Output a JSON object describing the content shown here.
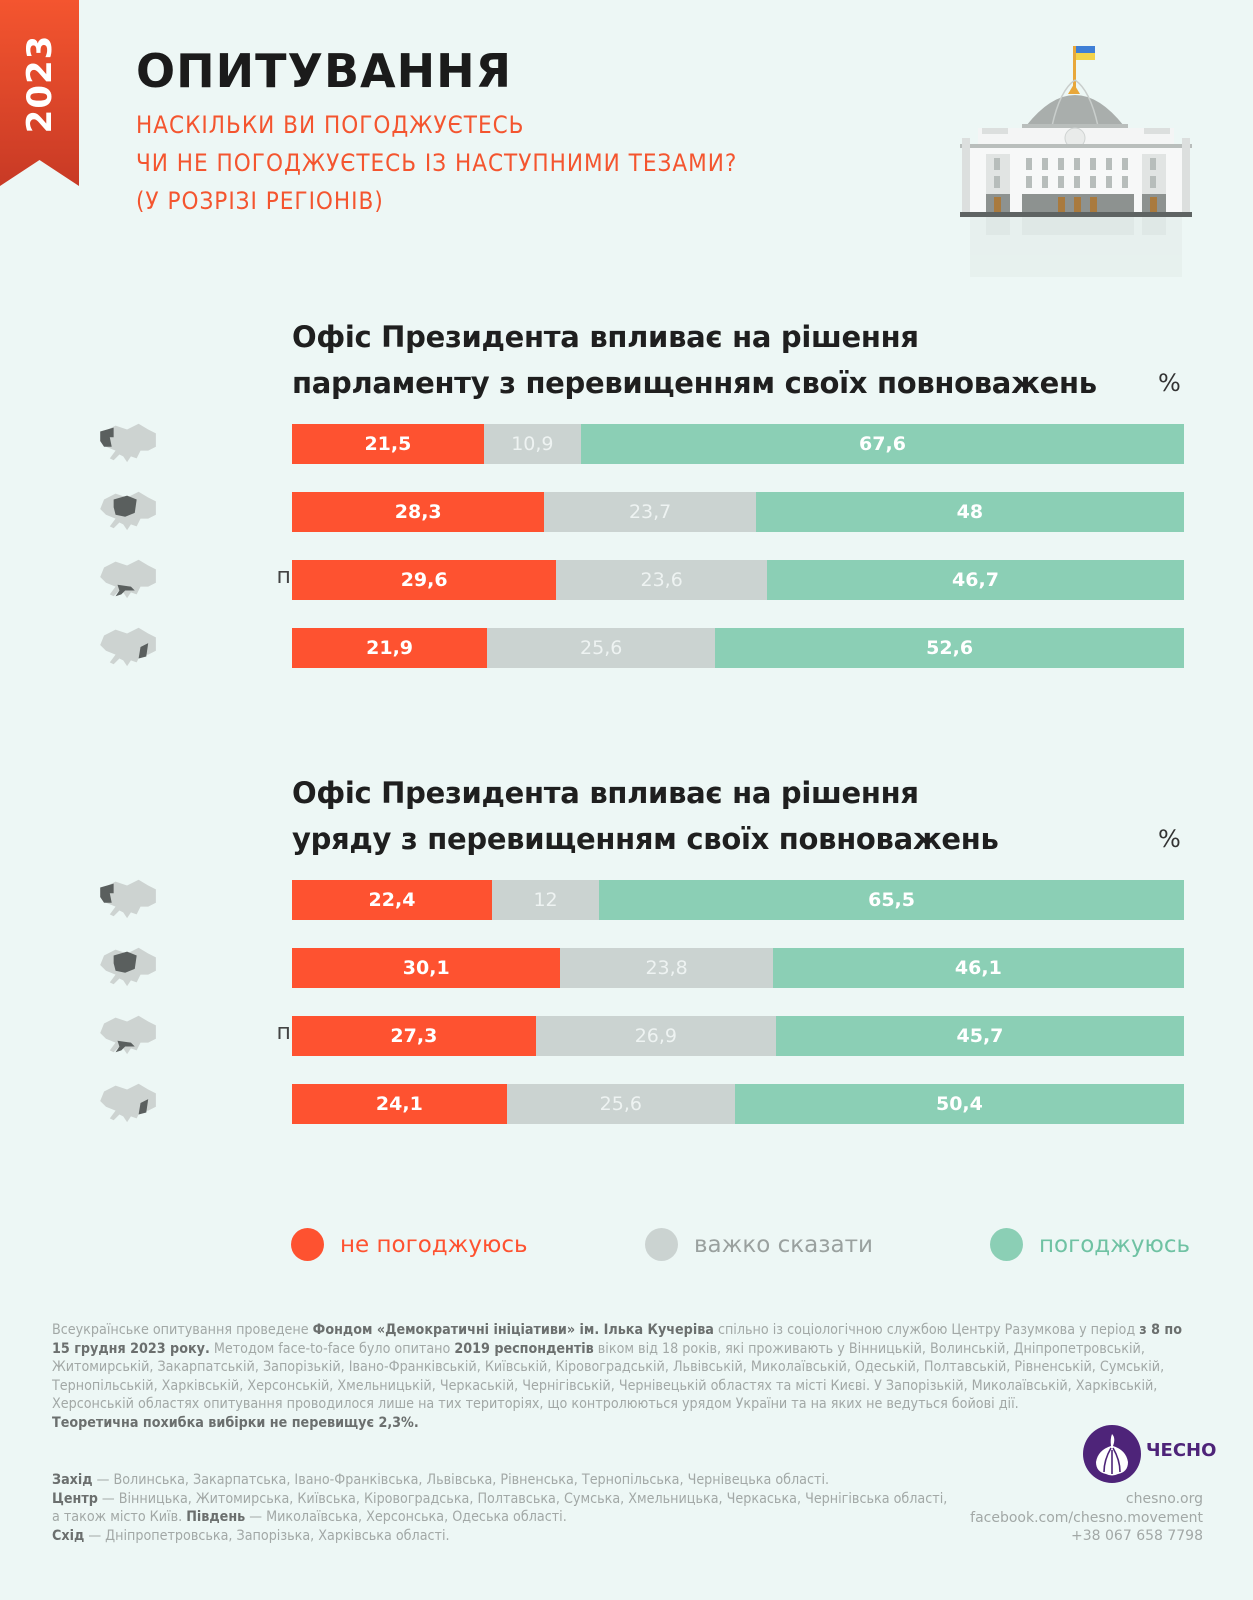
{
  "ribbon": {
    "year": "2023"
  },
  "header": {
    "title": "ОПИТУВАННЯ",
    "subtitle_lines": [
      "НАСКІЛЬКИ ВИ ПОГОДЖУЄТЕСЬ",
      "ЧИ НЕ ПОГОДЖУЄТЕСЬ ІЗ НАСТУПНИМИ ТЕЗАМИ?",
      "(У РОЗРІЗІ РЕГІОНІВ)"
    ]
  },
  "colors": {
    "disagree": "#fe5230",
    "hard_to_say": "#cbd3d1",
    "agree": "#8bcfb5",
    "accent": "#f4552f",
    "map_base": "#cdd3d1",
    "map_highlight": "#5a5f5e",
    "logo": "#4e2479"
  },
  "chart_data": [
    {
      "type": "bar",
      "orientation": "horizontal",
      "stacked": true,
      "title_lines": [
        "Офіс Президента впливає на рішення",
        "парламенту з перевищенням своїх повноважень"
      ],
      "unit": "%",
      "categories": [
        "захід",
        "центр",
        "південь",
        "схід"
      ],
      "series": [
        {
          "name": "не погоджуюсь",
          "values": [
            21.5,
            28.3,
            29.6,
            21.9
          ],
          "labels": [
            "21,5",
            "28,3",
            "29,6",
            "21,9"
          ]
        },
        {
          "name": "важко сказати",
          "values": [
            10.9,
            23.7,
            23.6,
            25.6
          ],
          "labels": [
            "10,9",
            "23,7",
            "23,6",
            "25,6"
          ]
        },
        {
          "name": "погоджуюсь",
          "values": [
            67.6,
            48,
            46.7,
            52.6
          ],
          "labels": [
            "67,6",
            "48",
            "46,7",
            "52,6"
          ]
        }
      ],
      "xlim": [
        0,
        100
      ]
    },
    {
      "type": "bar",
      "orientation": "horizontal",
      "stacked": true,
      "title_lines": [
        "Офіс Президента впливає на рішення",
        "уряду з перевищенням своїх повноважень"
      ],
      "unit": "%",
      "categories": [
        "захід",
        "центр",
        "південь",
        "схід"
      ],
      "series": [
        {
          "name": "не погоджуюсь",
          "values": [
            22.4,
            30.1,
            27.3,
            24.1
          ],
          "labels": [
            "22,4",
            "30,1",
            "27,3",
            "24,1"
          ]
        },
        {
          "name": "важко сказати",
          "values": [
            12,
            23.8,
            26.9,
            25.6
          ],
          "labels": [
            "12",
            "23,8",
            "26,9",
            "25,6"
          ]
        },
        {
          "name": "погоджуюсь",
          "values": [
            65.5,
            46.1,
            45.7,
            50.4
          ],
          "labels": [
            "65,5",
            "46,1",
            "45,7",
            "50,4"
          ]
        }
      ],
      "xlim": [
        0,
        100
      ]
    }
  ],
  "region_icons": [
    "map-west-icon",
    "map-center-icon",
    "map-south-icon",
    "map-east-icon"
  ],
  "legend": [
    {
      "label": "не погоджуюсь"
    },
    {
      "label": "важко сказати"
    },
    {
      "label": "погоджуюсь"
    }
  ],
  "footnote": {
    "p1": "Всеукраїнське опитування проведене ",
    "b1": "Фондом «Демократичні ініціативи» ім. Ілька Кучеріва",
    "p2": " спільно із соціологічною службою Центру Разумкова у період ",
    "b2": "з 8 по 15 грудня 2023 року.",
    "p3": " Методом face-to-face було опитано ",
    "b3": "2019 респондентів",
    "p4": " віком від 18 років, які проживають у Вінницькій, Волинській, Дніпропетровській, Житомирській, Закарпатській, Запорізькій, Івано-Франківській, Київській, Кіровоградській, Львівській, Миколаївській, Одеській, Полтавській, Рівненській, Сумській, Тернопільській, Харківській, Херсонській, Хмельницькій, Черкаській, Чернігівській, Чернівецькій областях та місті Києві. У Запорізькій, Миколаївській, Харківській, Херсонській областях опитування проводилося лише на тих територіях, що контролюються урядом України та на яких не ведуться бойові дії.",
    "b4": "Теоретична похибка вибірки не перевищує 2,3%."
  },
  "regions_note": [
    {
      "name": "Захід",
      "text": " — Волинська, Закарпатська, Івано-Франківська, Львівська, Рівненська, Тернопільська, Чернівецька області."
    },
    {
      "name": "Центр",
      "text": " — Вінницька, Житомирська, Київська, Кіровоградська, Полтавська, Сумська, Хмельницька, Черкаська, Чернігівська області, а також місто Київ. "
    },
    {
      "name": "Південь",
      "text": " — Миколаївська, Херсонська, Одеська області."
    },
    {
      "name": "Схід",
      "text": " — Дніпропетровська, Запорізька, Харківська області."
    }
  ],
  "brand": {
    "name": "ЧЕСНО",
    "site": "chesno.org",
    "facebook": "facebook.com/chesno.movement",
    "phone": "+38 067 658 7798"
  }
}
